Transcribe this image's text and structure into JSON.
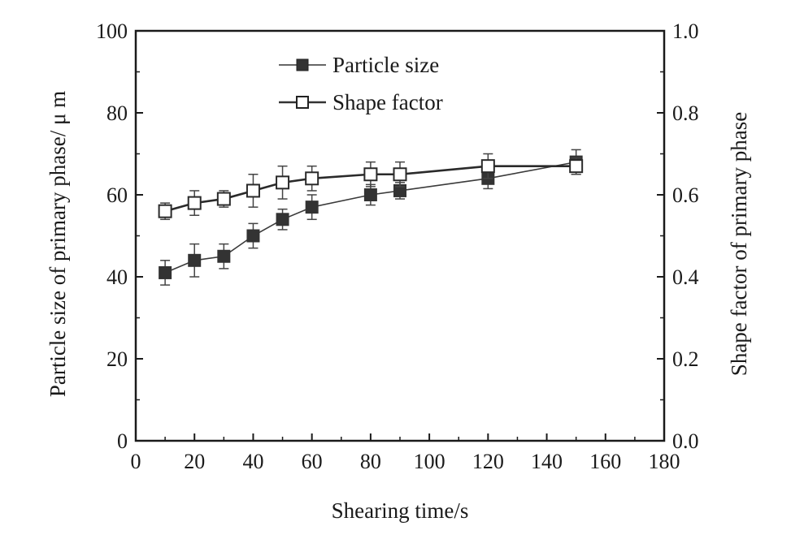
{
  "chart_data": {
    "type": "line",
    "title": "",
    "xlabel": "Shearing time/s",
    "ylabel": "Particle size of primary phase/ μ m",
    "ylabel_right": "Shape factor of primary phase",
    "xlim": [
      0,
      180
    ],
    "ylim": [
      0,
      100
    ],
    "ylim_right": [
      0.0,
      1.0
    ],
    "xticks": [
      0,
      20,
      40,
      60,
      80,
      100,
      120,
      140,
      160,
      180
    ],
    "yticks": [
      0,
      20,
      40,
      60,
      80,
      100
    ],
    "yticks_right": [
      "0.0",
      "0.2",
      "0.4",
      "0.6",
      "0.8",
      "1.0"
    ],
    "grid": false,
    "legend_position": "top-center",
    "series": [
      {
        "name": "Particle size",
        "axis": "left",
        "marker": "filled-square",
        "x": [
          10,
          20,
          30,
          40,
          50,
          60,
          80,
          90,
          120,
          150
        ],
        "y": [
          41,
          44,
          45,
          50,
          54,
          57,
          60,
          61,
          64,
          68
        ],
        "error": [
          3,
          4,
          3,
          3,
          2.5,
          3,
          2.5,
          2,
          2.5,
          3
        ]
      },
      {
        "name": "Shape factor",
        "axis": "right",
        "marker": "open-square",
        "x": [
          10,
          20,
          30,
          40,
          50,
          60,
          80,
          90,
          120,
          150
        ],
        "y": [
          0.56,
          0.58,
          0.59,
          0.61,
          0.63,
          0.64,
          0.65,
          0.65,
          0.67,
          0.67
        ],
        "error": [
          0.02,
          0.03,
          0.02,
          0.04,
          0.04,
          0.03,
          0.03,
          0.03,
          0.03,
          0.02
        ]
      }
    ]
  },
  "colors": {
    "axis": "#1a1a1a",
    "particle_line": "#3a3a3a",
    "shape_line": "#2a2a2a",
    "marker_fill": "#333333",
    "background": "#ffffff"
  }
}
